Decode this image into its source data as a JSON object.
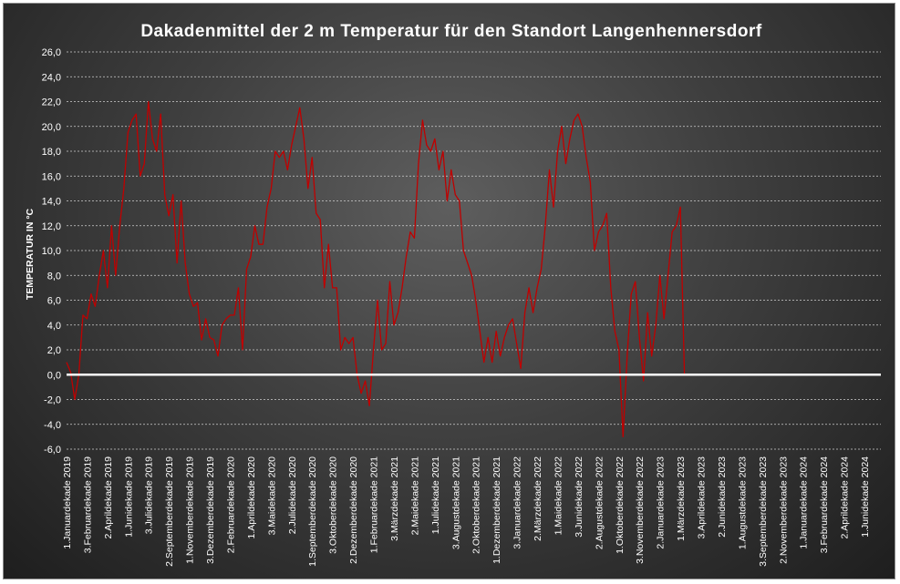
{
  "chart_data": {
    "type": "line",
    "title": "Dakadenmittel  der 2 m Temperatur  für den Standort  Langenhennersdorf",
    "xlabel": "",
    "ylabel": "TEMPERATUR IN °C",
    "ylim": [
      -6,
      26
    ],
    "yticks": [
      "-6,0",
      "-4,0",
      "-2,0",
      "0,0",
      "2,0",
      "4,0",
      "6,0",
      "8,0",
      "10,0",
      "12,0",
      "14,0",
      "16,0",
      "18,0",
      "20,0",
      "22,0",
      "24,0",
      "26,0"
    ],
    "grid": true,
    "legend": "none",
    "colors": {
      "series": "#c00000",
      "zero_line": "#ffffff",
      "grid": "#d0d0d0"
    },
    "x_tick_labels": [
      "1.Januardekade 2019",
      "3.Februardekade 2019",
      "2.Aprildekade 2019",
      "1.Junidekade 2019",
      "3.Julidekade 2019",
      "2.Septemberdekade 2019",
      "1.Novemberdekade 2019",
      "3.Dezemberdekade 2019",
      "2.Februardekade 2020",
      "1.Aprildekade 2020",
      "3.Maidekade 2020",
      "2.Julidekade 2020",
      "1.Septemberdekade 2020",
      "3.Oktoberdekade 2020",
      "2.Dezemberdekade 2020",
      "1.Februardekade 2021",
      "3.Märzdekade 2021",
      "2.Maidekade 2021",
      "1.Julidekade 2021",
      "3.Augustdekade 2021",
      "2.Oktoberdekade 2021",
      "1.Dezemberdekade 2021",
      "3.Januardekade 2022",
      "2.Märzdekade 2022",
      "1.Maidekade 2022",
      "3.Junidekade 2022",
      "2.Augustdekade 2022",
      "1.Oktoberdekade 2022",
      "3.Novemberdekade 2022",
      "2.Januardekade 2023",
      "1.Märzdekade 2023",
      "3.Aprildekade 2023",
      "2.Junidekade 2023",
      "1.Augustdekade 2023",
      "3.Septemberdekade 2023",
      "2.Novemberdekade 2023",
      "1.Januardekade 2024",
      "3.Februardekade 2024",
      "2.Aprildekade 2024",
      "1.Junidekade 2024"
    ],
    "x_tick_step": 5,
    "series": [
      {
        "values": [
          1.0,
          0.2,
          -2.0,
          0.0,
          4.8,
          4.5,
          6.5,
          5.5,
          8.0,
          10.0,
          7.0,
          12.0,
          8.0,
          12.0,
          15.0,
          19.5,
          20.5,
          21.0,
          16.0,
          17.0,
          22.0,
          19.0,
          18.0,
          21.0,
          14.5,
          12.8,
          14.5,
          9.0,
          14.0,
          9.0,
          6.5,
          5.5,
          5.8,
          2.8,
          4.5,
          3.0,
          2.8,
          1.5,
          4.0,
          4.5,
          4.8,
          4.8,
          7.0,
          2.0,
          8.5,
          9.5,
          12.0,
          10.5,
          10.5,
          13.5,
          15.0,
          18.0,
          17.5,
          18.0,
          16.5,
          18.5,
          20.0,
          21.5,
          19.0,
          15.0,
          17.5,
          13.0,
          12.5,
          7.0,
          10.5,
          7.0,
          7.0,
          2.0,
          3.0,
          2.5,
          3.0,
          0.0,
          -1.5,
          -0.5,
          -2.5,
          2.0,
          6.0,
          2.0,
          2.5,
          7.5,
          4.0,
          5.0,
          7.0,
          9.5,
          11.5,
          11.0,
          17.0,
          20.5,
          18.5,
          18.0,
          19.0,
          16.5,
          18.0,
          14.0,
          16.5,
          14.5,
          14.0,
          10.0,
          9.0,
          8.0,
          6.0,
          3.5,
          1.0,
          3.0,
          1.0,
          3.5,
          1.5,
          3.0,
          4.0,
          4.5,
          2.5,
          0.5,
          5.0,
          7.0,
          5.0,
          7.0,
          8.5,
          12.0,
          16.5,
          13.5,
          18.0,
          20.0,
          17.0,
          19.0,
          20.5,
          21.0,
          20.0,
          17.5,
          15.5,
          10.0,
          11.5,
          12.0,
          13.0,
          7.0,
          3.5,
          2.0,
          -5.0,
          1.5,
          6.5,
          7.5,
          3.0,
          -0.5,
          5.0,
          1.5,
          4.0,
          8.0,
          4.5,
          8.0,
          11.5,
          12.0,
          13.5,
          0.0,
          0,
          0,
          0,
          0,
          0,
          0,
          0,
          0,
          0,
          0,
          0,
          0,
          0,
          0,
          0,
          0,
          0,
          0,
          0,
          0,
          0,
          0,
          0,
          0,
          0,
          0,
          0,
          0,
          0,
          0,
          0,
          0,
          0,
          0,
          0,
          0,
          0,
          0,
          0,
          0,
          0,
          0,
          0,
          0,
          0,
          0,
          0,
          0
        ]
      }
    ]
  }
}
